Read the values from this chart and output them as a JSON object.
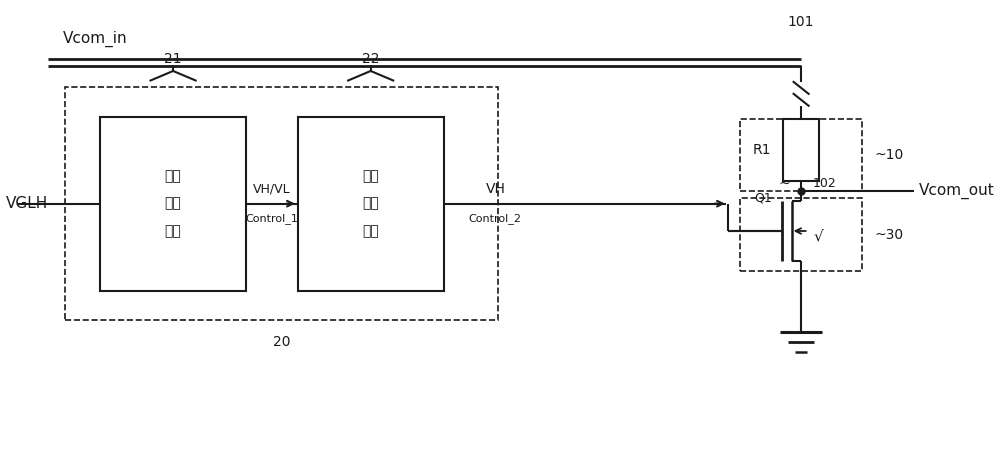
{
  "bg_color": "#ffffff",
  "line_color": "#1a1a1a",
  "box_color": "#ffffff",
  "text_color": "#1a1a1a",
  "figsize": [
    10.0,
    4.63
  ],
  "dpi": 100,
  "labels": {
    "vcom_in": "Vcom_in",
    "vcom_out": "Vcom_out",
    "vglh": "VGLH",
    "box1_line1": "第一",
    "box1_line2": "控制",
    "box1_line3": "单元",
    "box2_line1": "第二",
    "box2_line2": "控制",
    "box2_line3": "单元",
    "vh_vl": "VH/VL",
    "control_1": "Control_1",
    "vh": "VH",
    "control_2": "Control_2",
    "r1": "R1",
    "q1": "Q1",
    "num_101": "101",
    "num_102": "102",
    "num_10": "~10",
    "num_20": "20",
    "num_21": "21",
    "num_22": "22",
    "num_30": "~30",
    "checkmark": "√"
  }
}
